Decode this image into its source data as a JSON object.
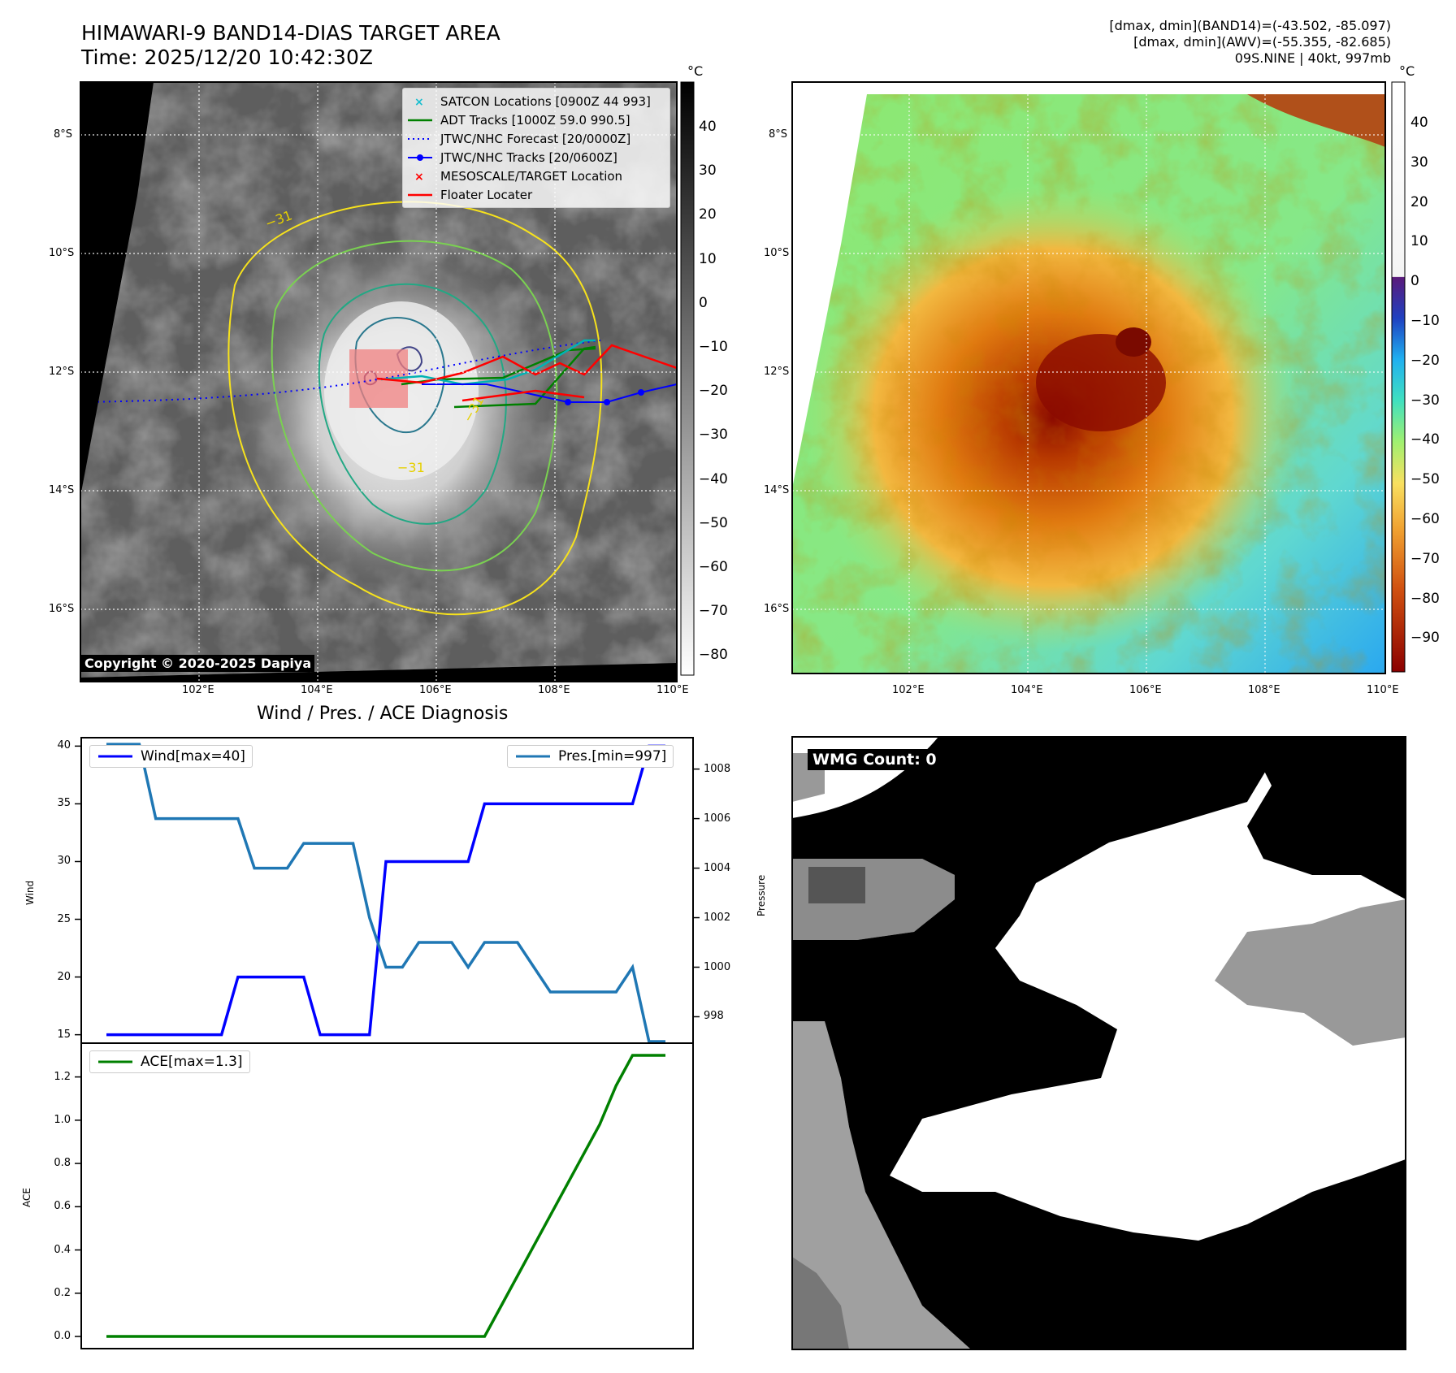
{
  "header": {
    "title_line1": "HIMAWARI-9 BAND14-DIAS TARGET AREA",
    "title_line2": "Time: 2025/12/20 10:42:30Z",
    "stats_line1": "[dmax, dmin](BAND14)=(-43.502, -85.097)",
    "stats_line2": "[dmax, dmin](AWV)=(-55.355, -82.685)",
    "stats_line3": "09S.NINE | 40kt, 997mb"
  },
  "maps": {
    "unit": "°C",
    "lat_labels": [
      "8°S",
      "10°S",
      "12°S",
      "14°S",
      "16°S"
    ],
    "lon_labels": [
      "102°E",
      "104°E",
      "106°E",
      "108°E",
      "110°E"
    ],
    "band14_colorbar_ticks": [
      "40",
      "30",
      "20",
      "10",
      "0",
      "−10",
      "−20",
      "−30",
      "−40",
      "−50",
      "−60",
      "−70",
      "−80"
    ],
    "awv_colorbar_ticks": [
      "40",
      "30",
      "20",
      "10",
      "0",
      "−10",
      "−20",
      "−30",
      "−40",
      "−50",
      "−60",
      "−70",
      "−80",
      "−90"
    ],
    "contour_label": "−31",
    "copyright": "Copyright © 2020-2025 Dapiya",
    "legend": [
      {
        "label": "SATCON Locations [0900Z 44 993]",
        "color": "#17becf",
        "marker": "x"
      },
      {
        "label": "ADT Tracks [1000Z 59.0 990.5]",
        "color": "#008000",
        "marker": "line"
      },
      {
        "label": "JTWC/NHC Forecast [20/0000Z]",
        "color": "#0000ff",
        "marker": "dotted"
      },
      {
        "label": "JTWC/NHC Tracks [20/0600Z]",
        "color": "#0000ff",
        "marker": "line-dot"
      },
      {
        "label": "MESOSCALE/TARGET Location",
        "color": "#ff0000",
        "marker": "x"
      },
      {
        "label": "Floater Locater",
        "color": "#ff0000",
        "marker": "line"
      }
    ]
  },
  "chart_data": [
    {
      "type": "line",
      "title": "Wind / Pres. / ACE Diagnosis",
      "ylabel": "Wind",
      "y2label": "Pressure",
      "ylim": [
        14.2,
        40.8
      ],
      "y2lim": [
        996.9,
        1009.3
      ],
      "yticks": [
        "15",
        "20",
        "25",
        "30",
        "35",
        "40"
      ],
      "y2ticks": [
        "998",
        "1000",
        "1002",
        "1004",
        "1006",
        "1008"
      ],
      "x": [
        0,
        1,
        2,
        3,
        4,
        5,
        6,
        7,
        8,
        9,
        10,
        11,
        12,
        13,
        14,
        15,
        16,
        17,
        18,
        19,
        20,
        21,
        22,
        23,
        24,
        25,
        26,
        27,
        28,
        29,
        30,
        31,
        32,
        33,
        34
      ],
      "series": [
        {
          "name": "Wind[max=40]",
          "axis": "left",
          "color": "#0000ff",
          "values": [
            15,
            15,
            15,
            15,
            15,
            15,
            15,
            15,
            20,
            20,
            20,
            20,
            20,
            15,
            15,
            15,
            15,
            30,
            30,
            30,
            30,
            30,
            30,
            35,
            35,
            35,
            35,
            35,
            35,
            35,
            35,
            35,
            35,
            40,
            40
          ]
        },
        {
          "name": "Pres.[min=997]",
          "axis": "right",
          "color": "#1f77b4",
          "values": [
            1009,
            1009,
            1009,
            1006,
            1006,
            1006,
            1006,
            1006,
            1006,
            1004,
            1004,
            1004,
            1005,
            1005,
            1005,
            1005,
            1002,
            1000,
            1000,
            1001,
            1001,
            1001,
            1000,
            1001,
            1001,
            1001,
            1000,
            999,
            999,
            999,
            999,
            999,
            1000,
            997,
            997
          ]
        }
      ]
    },
    {
      "type": "line",
      "ylabel": "ACE",
      "ylim": [
        -0.06,
        1.36
      ],
      "yticks": [
        "0.0",
        "0.2",
        "0.4",
        "0.6",
        "0.8",
        "1.0",
        "1.2"
      ],
      "x": [
        0,
        1,
        2,
        3,
        4,
        5,
        6,
        7,
        8,
        9,
        10,
        11,
        12,
        13,
        14,
        15,
        16,
        17,
        18,
        19,
        20,
        21,
        22,
        23,
        24,
        25,
        26,
        27,
        28,
        29,
        30,
        31,
        32,
        33,
        34
      ],
      "series": [
        {
          "name": "ACE[max=1.3]",
          "color": "#008000",
          "values": [
            0,
            0,
            0,
            0,
            0,
            0,
            0,
            0,
            0,
            0,
            0,
            0,
            0,
            0,
            0,
            0,
            0,
            0,
            0,
            0,
            0,
            0,
            0,
            0,
            0.14,
            0.28,
            0.42,
            0.56,
            0.7,
            0.84,
            0.98,
            1.16,
            1.3,
            1.3,
            1.3
          ]
        }
      ]
    }
  ],
  "wmg": {
    "label": "WMG Count: 0"
  }
}
